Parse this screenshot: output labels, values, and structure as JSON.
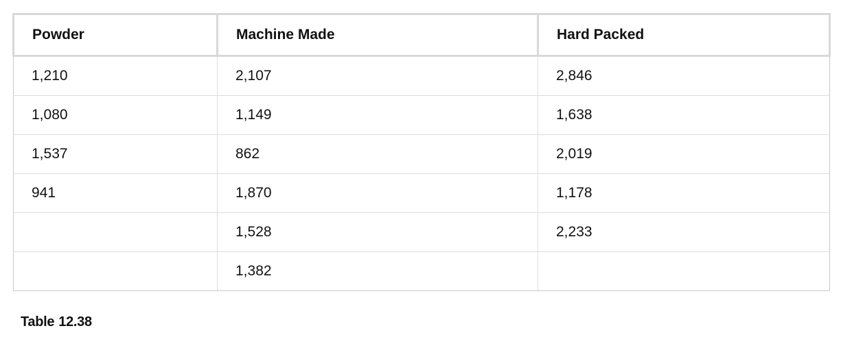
{
  "table": {
    "headers": [
      "Powder",
      "Machine Made",
      "Hard Packed"
    ],
    "rows": [
      [
        "1,210",
        "2,107",
        "2,846"
      ],
      [
        "1,080",
        "1,149",
        "1,638"
      ],
      [
        "1,537",
        "862",
        "2,019"
      ],
      [
        "941",
        "1,870",
        "1,178"
      ],
      [
        "",
        "1,528",
        "2,233"
      ],
      [
        "",
        "1,382",
        ""
      ]
    ]
  },
  "caption": {
    "label": "Table",
    "number": "12.38"
  }
}
